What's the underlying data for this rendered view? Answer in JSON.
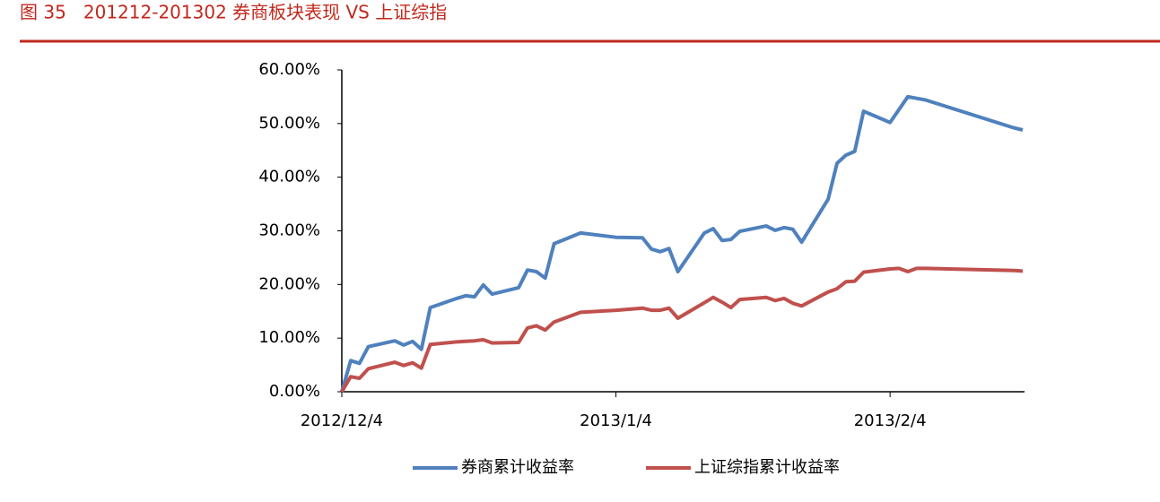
{
  "chart_data": {
    "type": "line",
    "title": "图 35   201212-201302 券商板块表现 VS 上证综指",
    "x": [
      "2012/12/4",
      "2012/12/5",
      "2012/12/6",
      "2012/12/7",
      "2012/12/10",
      "2012/12/11",
      "2012/12/12",
      "2012/12/13",
      "2012/12/14",
      "2012/12/17",
      "2012/12/18",
      "2012/12/19",
      "2012/12/20",
      "2012/12/21",
      "2012/12/24",
      "2012/12/25",
      "2012/12/26",
      "2012/12/27",
      "2012/12/28",
      "2012/12/31",
      "2013/1/4",
      "2013/1/7",
      "2013/1/8",
      "2013/1/9",
      "2013/1/10",
      "2013/1/11",
      "2013/1/14",
      "2013/1/15",
      "2013/1/16",
      "2013/1/17",
      "2013/1/18",
      "2013/1/21",
      "2013/1/22",
      "2013/1/23",
      "2013/1/24",
      "2013/1/25",
      "2013/1/28",
      "2013/1/29",
      "2013/1/30",
      "2013/1/31",
      "2013/2/1",
      "2013/2/4",
      "2013/2/5",
      "2013/2/6",
      "2013/2/7",
      "2013/2/8",
      "2013/2/18",
      "2013/2/19"
    ],
    "series": [
      {
        "name": "券商累计收益率",
        "color": "#4f81bd",
        "values": [
          0,
          5.8,
          5.3,
          8.4,
          9.5,
          8.7,
          9.4,
          7.9,
          15.7,
          17.4,
          17.9,
          17.7,
          19.9,
          18.2,
          19.4,
          22.7,
          22.4,
          21.2,
          27.6,
          29.6,
          28.8,
          28.7,
          26.6,
          26.1,
          26.7,
          22.4,
          29.6,
          30.4,
          28.2,
          28.4,
          29.9,
          30.9,
          30.1,
          30.6,
          30.3,
          27.9,
          35.9,
          42.6,
          44.1,
          44.8,
          52.3,
          50.2,
          52.6,
          55.0,
          54.7,
          54.4,
          49.2,
          48.8
        ]
      },
      {
        "name": "上证综指累计收益率",
        "color": "#c0504d",
        "values": [
          0,
          2.8,
          2.5,
          4.3,
          5.5,
          4.9,
          5.4,
          4.4,
          8.8,
          9.3,
          9.4,
          9.5,
          9.7,
          9.1,
          9.2,
          11.9,
          12.3,
          11.5,
          13.0,
          14.8,
          15.2,
          15.6,
          15.2,
          15.2,
          15.6,
          13.7,
          16.6,
          17.6,
          16.7,
          15.7,
          17.2,
          17.6,
          17.0,
          17.4,
          16.5,
          16.0,
          18.6,
          19.2,
          20.5,
          20.6,
          22.3,
          22.9,
          23.0,
          22.4,
          23.0,
          23.0,
          22.6,
          22.5
        ]
      }
    ],
    "xlim": [
      "2012/12/4",
      "2013/2/19"
    ],
    "xticks": [
      "2012/12/4",
      "2013/1/4",
      "2013/2/4"
    ],
    "ylim": [
      0,
      60
    ],
    "yticks": [
      {
        "value": 0,
        "label": "0.00%"
      },
      {
        "value": 10,
        "label": "10.00%"
      },
      {
        "value": 20,
        "label": "20.00%"
      },
      {
        "value": 30,
        "label": "30.00%"
      },
      {
        "value": 40,
        "label": "40.00%"
      },
      {
        "value": 50,
        "label": "50.00%"
      },
      {
        "value": 60,
        "label": "60.00%"
      }
    ],
    "legend": "bottom"
  }
}
